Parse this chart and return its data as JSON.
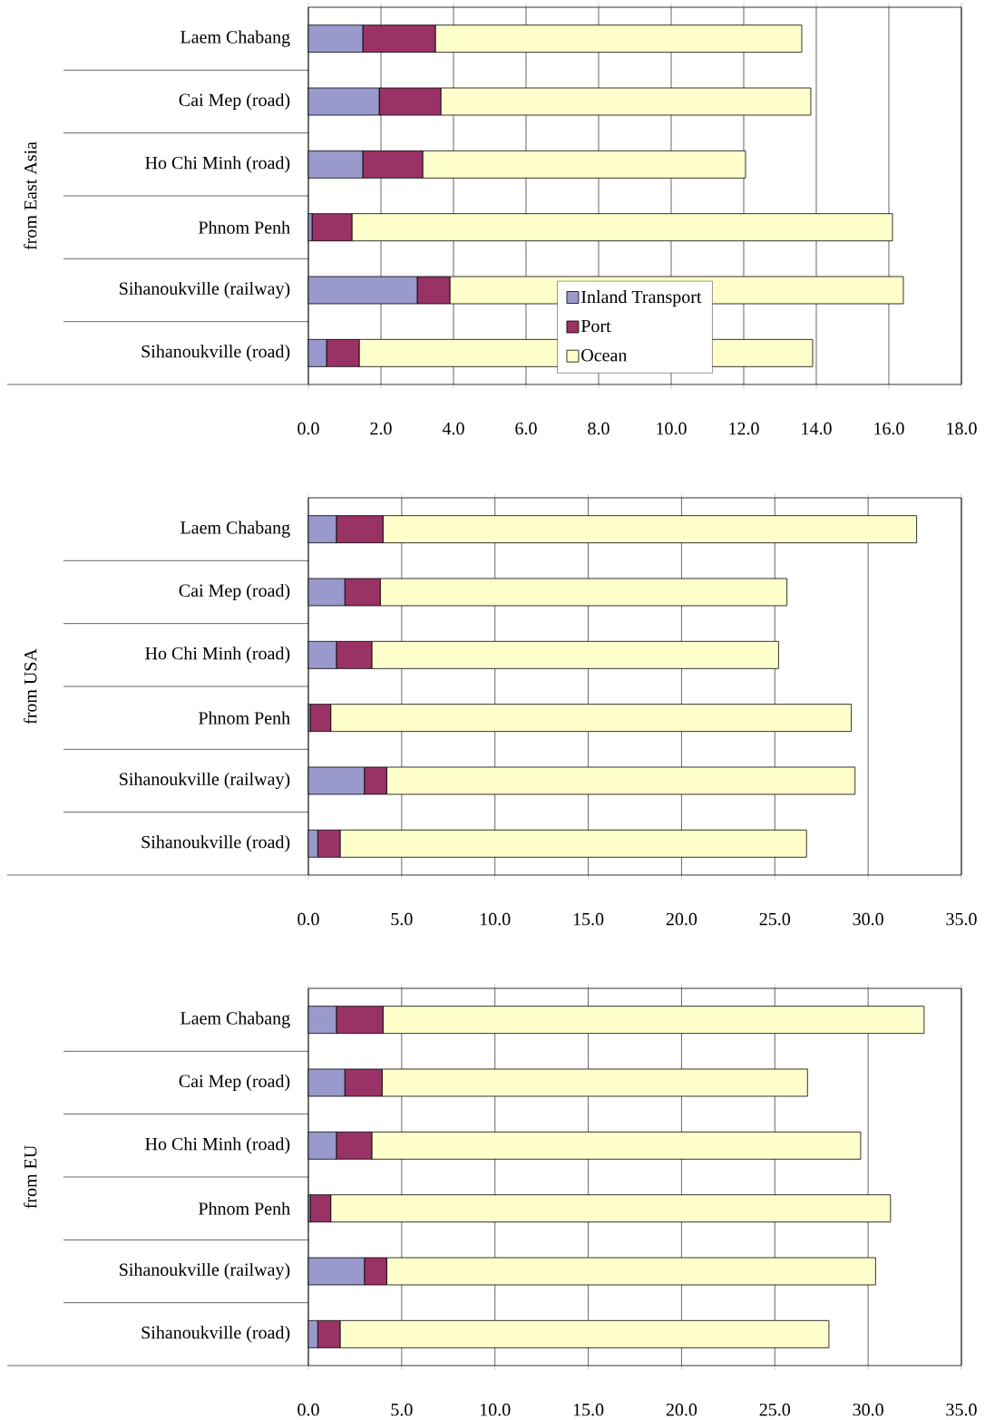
{
  "chart_data": [
    {
      "type": "bar",
      "orientation": "horizontal",
      "stacked": true,
      "ylabel": "from East Asia",
      "categories": [
        "Laem Chabang",
        "Cai Mep (road)",
        "Ho Chi Minh (road)",
        "Phnom Penh",
        "Sihanoukville (railway)",
        "Sihanoukville (road)"
      ],
      "series": [
        {
          "name": "Inland Transport",
          "color": "#9999cc",
          "values": [
            1.5,
            1.95,
            1.5,
            0.1,
            3.0,
            0.5
          ]
        },
        {
          "name": "Port",
          "color": "#993366",
          "values": [
            2.0,
            1.7,
            1.65,
            1.1,
            0.9,
            0.9
          ]
        },
        {
          "name": "Ocean",
          "color": "#ffffcc",
          "values": [
            10.1,
            10.2,
            8.9,
            14.9,
            12.5,
            12.5
          ]
        }
      ],
      "xlim": [
        0,
        18
      ],
      "xticks": [
        {
          "value": 0,
          "label": "0.0"
        },
        {
          "value": 2,
          "label": "2.0"
        },
        {
          "value": 4,
          "label": "4.0"
        },
        {
          "value": 6,
          "label": "6.0"
        },
        {
          "value": 8,
          "label": "8.0"
        },
        {
          "value": 10,
          "label": "10.0"
        },
        {
          "value": 12,
          "label": "12.0"
        },
        {
          "value": 14,
          "label": "14.0"
        },
        {
          "value": 16,
          "label": "16.0"
        },
        {
          "value": 18,
          "label": "18.0"
        }
      ],
      "grid": "x",
      "legend": "bottom"
    },
    {
      "type": "bar",
      "orientation": "horizontal",
      "stacked": true,
      "ylabel": "from USA",
      "categories": [
        "Laem Chabang",
        "Cai Mep (road)",
        "Ho Chi Minh (road)",
        "Phnom Penh",
        "Sihanoukville (railway)",
        "Sihanoukville (road)"
      ],
      "series": [
        {
          "color": "#9999cc",
          "values": [
            1.5,
            1.95,
            1.5,
            0.1,
            3.0,
            0.5
          ]
        },
        {
          "color": "#993366",
          "values": [
            2.5,
            1.9,
            1.9,
            1.1,
            1.2,
            1.2
          ]
        },
        {
          "color": "#ffffcc",
          "values": [
            28.6,
            21.8,
            21.8,
            27.9,
            25.1,
            25.0
          ]
        }
      ],
      "xlim": [
        0,
        35
      ],
      "xticks": [
        {
          "value": 0,
          "label": "0.0"
        },
        {
          "value": 5,
          "label": "5.0"
        },
        {
          "value": 10,
          "label": "10.0"
        },
        {
          "value": 15,
          "label": "15.0"
        },
        {
          "value": 20,
          "label": "20.0"
        },
        {
          "value": 25,
          "label": "25.0"
        },
        {
          "value": 30,
          "label": "30.0"
        },
        {
          "value": 35,
          "label": "35.0"
        }
      ],
      "grid": "x"
    },
    {
      "type": "bar",
      "orientation": "horizontal",
      "stacked": true,
      "ylabel": "from EU",
      "categories": [
        "Laem Chabang",
        "Cai Mep (road)",
        "Ho Chi Minh (road)",
        "Phnom Penh",
        "Sihanoukville (railway)",
        "Sihanoukville (road)"
      ],
      "series": [
        {
          "color": "#9999cc",
          "values": [
            1.5,
            1.95,
            1.5,
            0.1,
            3.0,
            0.5
          ]
        },
        {
          "color": "#993366",
          "values": [
            2.5,
            2.0,
            1.9,
            1.1,
            1.2,
            1.2
          ]
        },
        {
          "color": "#ffffcc",
          "values": [
            29.0,
            22.8,
            26.2,
            30.0,
            26.2,
            26.2
          ]
        }
      ],
      "xlim": [
        0,
        35
      ],
      "xticks": [
        {
          "value": 0,
          "label": "0.0"
        },
        {
          "value": 5,
          "label": "5.0"
        },
        {
          "value": 10,
          "label": "10.0"
        },
        {
          "value": 15,
          "label": "15.0"
        },
        {
          "value": 20,
          "label": "20.0"
        },
        {
          "value": 25,
          "label": "25.0"
        },
        {
          "value": 30,
          "label": "30.0"
        },
        {
          "value": 35,
          "label": "35.0"
        }
      ],
      "grid": "x"
    }
  ]
}
